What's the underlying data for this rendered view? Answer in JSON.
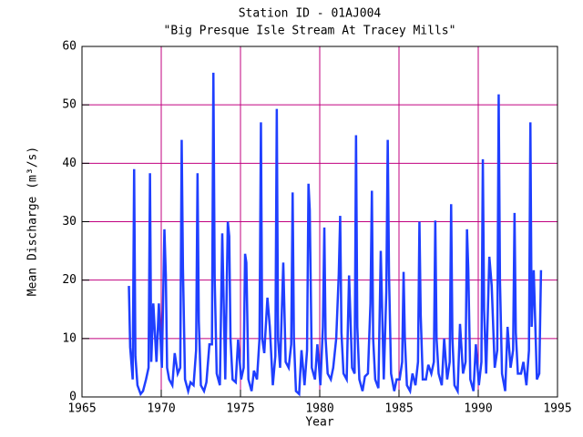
{
  "chart_data": {
    "type": "line",
    "title": "Station ID - 01AJ004",
    "subtitle": "\"Big Presque Isle Stream At Tracey Mills\"",
    "x_label": "Year",
    "y_label": "Mean Discharge (m³/s)",
    "color": "#1f3fff",
    "grid_color": "#c0007f",
    "grid": true,
    "xlim": [
      1965,
      1995
    ],
    "xticks": [
      1965,
      1970,
      1975,
      1980,
      1985,
      1990,
      1995
    ],
    "ylim": [
      0,
      60
    ],
    "yticks": [
      0,
      10,
      20,
      30,
      40,
      50,
      60
    ],
    "x": [
      1967.96,
      1968.04,
      1968.2,
      1968.29,
      1968.37,
      1968.5,
      1968.7,
      1968.85,
      1969.04,
      1969.2,
      1969.29,
      1969.37,
      1969.5,
      1969.7,
      1969.85,
      1970.04,
      1970.2,
      1970.29,
      1970.37,
      1970.5,
      1970.7,
      1970.85,
      1971.04,
      1971.2,
      1971.29,
      1971.37,
      1971.5,
      1971.7,
      1971.85,
      1972.04,
      1972.2,
      1972.29,
      1972.37,
      1972.5,
      1972.7,
      1972.85,
      1973.04,
      1973.2,
      1973.29,
      1973.37,
      1973.5,
      1973.7,
      1973.85,
      1974.04,
      1974.2,
      1974.29,
      1974.37,
      1974.5,
      1974.7,
      1974.85,
      1975.04,
      1975.2,
      1975.29,
      1975.37,
      1975.5,
      1975.7,
      1975.85,
      1976.04,
      1976.2,
      1976.29,
      1976.37,
      1976.5,
      1976.7,
      1976.85,
      1977.04,
      1977.2,
      1977.29,
      1977.37,
      1977.5,
      1977.7,
      1977.85,
      1978.04,
      1978.2,
      1978.29,
      1978.37,
      1978.5,
      1978.7,
      1978.85,
      1979.04,
      1979.2,
      1979.29,
      1979.37,
      1979.5,
      1979.7,
      1979.85,
      1980.04,
      1980.2,
      1980.29,
      1980.37,
      1980.5,
      1980.7,
      1980.85,
      1981.04,
      1981.2,
      1981.29,
      1981.37,
      1981.5,
      1981.7,
      1981.85,
      1982.04,
      1982.2,
      1982.29,
      1982.37,
      1982.5,
      1982.7,
      1982.85,
      1983.04,
      1983.2,
      1983.29,
      1983.37,
      1983.5,
      1983.7,
      1983.85,
      1984.04,
      1984.2,
      1984.29,
      1984.37,
      1984.5,
      1984.7,
      1984.85,
      1985.04,
      1985.2,
      1985.29,
      1985.37,
      1985.5,
      1985.7,
      1985.85,
      1986.04,
      1986.2,
      1986.29,
      1986.37,
      1986.5,
      1986.7,
      1986.85,
      1987.04,
      1987.2,
      1987.29,
      1987.37,
      1987.5,
      1987.7,
      1987.85,
      1988.04,
      1988.2,
      1988.29,
      1988.37,
      1988.5,
      1988.7,
      1988.85,
      1989.04,
      1989.2,
      1989.29,
      1989.37,
      1989.5,
      1989.7,
      1989.85,
      1990.04,
      1990.2,
      1990.29,
      1990.37,
      1990.5,
      1990.7,
      1990.85,
      1991.04,
      1991.2,
      1991.29,
      1991.37,
      1991.5,
      1991.7,
      1991.85,
      1992.04,
      1992.2,
      1992.29,
      1992.37,
      1992.5,
      1992.7,
      1992.85,
      1993.04,
      1993.2,
      1993.29,
      1993.37,
      1993.5,
      1993.7,
      1993.85,
      1993.96
    ],
    "values": [
      19,
      8.5,
      3,
      39,
      7,
      2,
      0.5,
      1,
      3,
      5,
      38.3,
      6,
      16,
      6,
      16,
      5,
      28.7,
      20.8,
      5,
      3,
      2,
      7.5,
      4,
      5,
      44,
      22,
      3,
      1,
      2.5,
      2,
      8,
      38.3,
      13,
      2,
      1,
      2.5,
      9,
      9,
      55.5,
      20.5,
      4,
      2,
      28,
      3,
      30,
      27.5,
      10,
      3,
      2.5,
      9.8,
      3,
      5,
      24.5,
      23,
      3,
      1,
      4.5,
      3,
      10,
      47,
      10,
      7.5,
      17,
      12,
      2,
      7,
      49.3,
      10,
      5,
      23,
      6,
      5,
      9,
      35,
      10,
      1,
      0.5,
      8,
      2,
      8,
      36.5,
      32,
      5,
      3,
      9,
      2,
      12,
      29,
      10,
      4,
      3,
      5,
      10,
      21,
      31,
      11,
      4,
      3,
      20.8,
      5,
      4,
      44.8,
      12,
      3,
      1,
      3.5,
      4,
      16,
      35.3,
      10,
      3,
      1.5,
      25,
      3,
      18,
      44,
      21,
      4,
      1,
      3,
      3,
      6,
      21.4,
      10,
      2,
      1,
      4,
      2,
      6,
      30,
      14,
      3,
      3,
      5.5,
      4,
      6,
      30.2,
      10,
      4,
      2,
      10,
      3,
      6,
      33,
      10,
      2,
      1,
      12.5,
      4,
      6,
      28.7,
      22,
      3,
      1,
      9,
      2,
      6,
      40.7,
      15,
      4,
      24,
      19,
      5,
      8,
      51.8,
      20,
      4,
      1,
      12,
      5,
      8,
      31.5,
      11,
      4,
      4,
      6,
      2,
      8,
      47,
      12,
      21.7,
      3,
      4,
      21.7
    ]
  }
}
